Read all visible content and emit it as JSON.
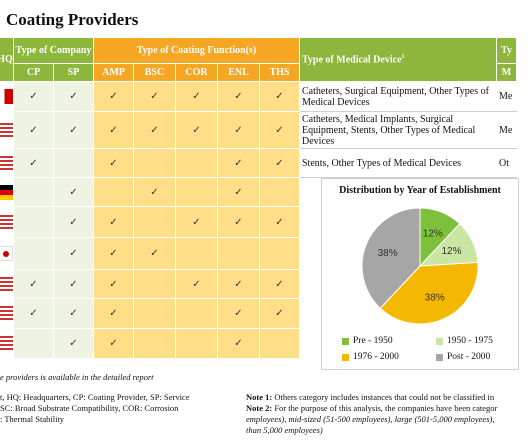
{
  "title": "Coating Providers",
  "headers": {
    "hq": "HQ",
    "type_company": "Type of Company",
    "type_coating": "Type of Coating Function(s)",
    "type_device": "Type of Medical Device",
    "device_sup": "1",
    "next_col_top": "Ty",
    "next_col_bottom": "M",
    "company_cols": [
      "CP",
      "SP"
    ],
    "coating_cols": [
      "AMP",
      "BSC",
      "COR",
      "ENL",
      "THS"
    ]
  },
  "rows": [
    {
      "flag": "partial-red",
      "cp": "✓",
      "sp": "✓",
      "amp": "✓",
      "bsc": "✓",
      "cor": "✓",
      "enl": "✓",
      "ths": "✓",
      "device": "Catheters, Surgical Equipment, Other Types of Medical Devices",
      "next": "Me"
    },
    {
      "flag": "us",
      "cp": "✓",
      "sp": "✓",
      "amp": "✓",
      "bsc": "✓",
      "cor": "✓",
      "enl": "✓",
      "ths": "✓",
      "device": "Catheters, Medical Implants, Surgical Equipment, Stents, Other Types of Medical Devices",
      "next": "Me"
    },
    {
      "flag": "us",
      "cp": "✓",
      "sp": "",
      "amp": "✓",
      "bsc": "",
      "cor": "",
      "enl": "✓",
      "ths": "✓",
      "device": "Stents, Other Types of Medical Devices",
      "next": "Ot"
    },
    {
      "flag": "de",
      "cp": "",
      "sp": "✓",
      "amp": "",
      "bsc": "✓",
      "cor": "",
      "enl": "✓",
      "ths": "",
      "device": "",
      "next": ""
    },
    {
      "flag": "us",
      "cp": "",
      "sp": "✓",
      "amp": "✓",
      "bsc": "",
      "cor": "✓",
      "enl": "✓",
      "ths": "✓",
      "device": "",
      "next": ""
    },
    {
      "flag": "jp",
      "cp": "",
      "sp": "✓",
      "amp": "✓",
      "bsc": "✓",
      "cor": "",
      "enl": "",
      "ths": "",
      "device": "",
      "next": ""
    },
    {
      "flag": "us",
      "cp": "✓",
      "sp": "✓",
      "amp": "✓",
      "bsc": "",
      "cor": "✓",
      "enl": "✓",
      "ths": "✓",
      "device": "",
      "next": ""
    },
    {
      "flag": "us",
      "cp": "✓",
      "sp": "✓",
      "amp": "✓",
      "bsc": "",
      "cor": "",
      "enl": "✓",
      "ths": "✓",
      "device": "",
      "next": ""
    },
    {
      "flag": "us",
      "cp": "",
      "sp": "✓",
      "amp": "✓",
      "bsc": "",
      "cor": "",
      "enl": "✓",
      "ths": "",
      "device": "",
      "next": ""
    }
  ],
  "chart_data": {
    "type": "pie",
    "title": "Distribution by Year of Establishment",
    "categories": [
      "Pre - 1950",
      "1950 - 1975",
      "1976 - 2000",
      "Post - 2000"
    ],
    "values": [
      12,
      12,
      38,
      38
    ],
    "labels": [
      "12%",
      "12%",
      "38%",
      "38%"
    ],
    "colors": [
      "#7ec03b",
      "#c9e6a3",
      "#f5b800",
      "#a6a6a6"
    ],
    "legend_position": "bottom"
  },
  "footer": {
    "left_note": "e providers is available in the detailed report",
    "left_lines": [
      "t, HQ: Headquarters, CP: Coating Provider, SP: Service",
      "SC: Broad Substrate Compatibility, COR: Corrosion",
      ": Thermal Stability"
    ],
    "note1_label": "Note 1:",
    "note1_text": "Others category includes instances that could not be classified in",
    "note2_label": "Note 2:",
    "note2_text": "For the purpose of this analysis, the companies have been categor",
    "note2_line2": "employees), mid-sized (51-500 employees), large (501-5,000 employees),",
    "note2_line3": "than 5,000 employees)"
  },
  "colors": {
    "header_green": "#8db63c",
    "header_orange": "#f5a623",
    "cell_orange": "#fedf87",
    "cell_green": "#eef3e3"
  }
}
